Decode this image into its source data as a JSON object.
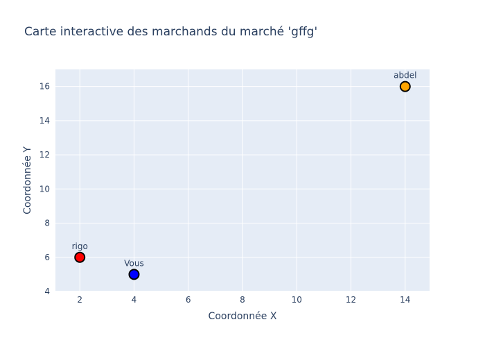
{
  "chart_data": {
    "type": "scatter",
    "title": "Carte interactive des marchands du marché 'gffg'",
    "xlabel": "Coordonnée X",
    "ylabel": "Coordonnée Y",
    "xlim": [
      1.1,
      14.9
    ],
    "ylim": [
      4,
      17
    ],
    "xticks": [
      2,
      4,
      6,
      8,
      10,
      12,
      14
    ],
    "yticks": [
      4,
      6,
      8,
      10,
      12,
      14,
      16
    ],
    "grid": true,
    "legend": "none",
    "background_color": "#e5ecf6",
    "grid_color": "#ffffff",
    "points": [
      {
        "label": "rigo",
        "x": 2,
        "y": 6,
        "color": "#ff0000"
      },
      {
        "label": "Vous",
        "x": 4,
        "y": 5,
        "color": "#0000ff"
      },
      {
        "label": "abdel",
        "x": 14,
        "y": 16,
        "color": "#ffa500"
      }
    ]
  }
}
